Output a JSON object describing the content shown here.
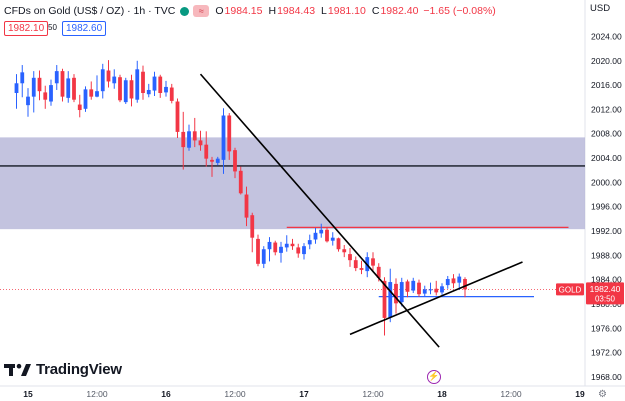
{
  "header": {
    "title": "CFDs on Gold (US$ / OZ) · 1h · TVC",
    "highlight_badge": "≈",
    "open_label": "O",
    "open": "1984.15",
    "high_label": "H",
    "high": "1984.43",
    "low_label": "L",
    "low": "1981.10",
    "close_label": "C",
    "close": "1982.40",
    "change": "−1.65 (−0.08%)"
  },
  "trade": {
    "sell": "1982.10",
    "spread": "50",
    "buy": "1982.60"
  },
  "currency": "USD",
  "branding": {
    "logo_text": "TradingView"
  },
  "colors": {
    "up": "#2962ff",
    "down": "#f23645",
    "zone": "#b2b2d6",
    "price_label": "#f23645"
  },
  "chart_data": {
    "type": "candlestick",
    "symbol_label": "GOLD",
    "last_price_label": "1982.40",
    "countdown_label": "03:50",
    "ylim": [
      1966.5,
      2030.0
    ],
    "y_ticks": [
      "2024.00",
      "2020.00",
      "2016.00",
      "2012.00",
      "2008.00",
      "2004.00",
      "2000.00",
      "1996.00",
      "1992.00",
      "1988.00",
      "1984.00",
      "1980.00",
      "1976.00",
      "1972.00",
      "1968.00"
    ],
    "x_ticks": [
      {
        "t": 0,
        "label": "15"
      },
      {
        "t": 12,
        "label": "12:00"
      },
      {
        "t": 24,
        "label": "16"
      },
      {
        "t": 36,
        "label": "12:00"
      },
      {
        "t": 48,
        "label": "17"
      },
      {
        "t": 60,
        "label": "12:00"
      },
      {
        "t": 72,
        "label": "18"
      },
      {
        "t": 84,
        "label": "12:00"
      },
      {
        "t": 96,
        "label": "19"
      }
    ],
    "zone": {
      "low": 1992.3,
      "high": 2007.4
    },
    "hlines": [
      {
        "y": 2002.7,
        "color": "#131722"
      },
      {
        "y": 1992.6,
        "t0": 45,
        "t1": 94,
        "color": "#f23645"
      },
      {
        "y": 1981.2,
        "t0": 61,
        "t1": 88,
        "color": "#2962ff"
      }
    ],
    "trendlines": [
      {
        "t0": 30,
        "y0": 2017.8,
        "t1": 71.5,
        "y1": 1972.9
      },
      {
        "t0": 56,
        "y0": 1975.0,
        "t1": 86,
        "y1": 1986.9
      }
    ],
    "last_price": 1982.4,
    "candles": [
      [
        -2,
        2014.7,
        2017.8,
        2012.1,
        2016.3
      ],
      [
        -1,
        2016.3,
        2019.3,
        2014.0,
        2018.1
      ],
      [
        0,
        2012.7,
        2015.5,
        2010.8,
        2014.1
      ],
      [
        1,
        2014.1,
        2018.3,
        2011.5,
        2017.2
      ],
      [
        2,
        2017.2,
        2018.4,
        2013.5,
        2015.0
      ],
      [
        3,
        2014.8,
        2015.9,
        2012.1,
        2013.6
      ],
      [
        4,
        2013.3,
        2016.9,
        2012.6,
        2016.0
      ],
      [
        5,
        2016.3,
        2019.3,
        2015.2,
        2018.3
      ],
      [
        6,
        2018.3,
        2018.7,
        2013.3,
        2014.1
      ],
      [
        7,
        2013.9,
        2018.3,
        2013.1,
        2017.1
      ],
      [
        8,
        2017.2,
        2017.8,
        2013.2,
        2013.6
      ],
      [
        9,
        2012.8,
        2014.4,
        2010.7,
        2011.9
      ],
      [
        10,
        2012.1,
        2015.8,
        2011.6,
        2015.3
      ],
      [
        11,
        2015.3,
        2016.6,
        2013.6,
        2014.1
      ],
      [
        12,
        2014.1,
        2017.6,
        2014.0,
        2015.0
      ],
      [
        13,
        2015.0,
        2019.5,
        2013.8,
        2018.6
      ],
      [
        14,
        2018.4,
        2020.1,
        2015.6,
        2016.6
      ],
      [
        15,
        2016.3,
        2018.6,
        2015.4,
        2017.4
      ],
      [
        16,
        2017.3,
        2017.7,
        2013.2,
        2013.5
      ],
      [
        17,
        2013.2,
        2017.2,
        2012.9,
        2016.8
      ],
      [
        18,
        2016.8,
        2017.7,
        2012.5,
        2013.8
      ],
      [
        19,
        2013.6,
        2020.0,
        2013.1,
        2018.6
      ],
      [
        20,
        2018.2,
        2019.2,
        2013.6,
        2014.7
      ],
      [
        21,
        2014.5,
        2016.2,
        2014.0,
        2015.2
      ],
      [
        22,
        2015.1,
        2018.2,
        2014.2,
        2017.4
      ],
      [
        23,
        2017.4,
        2017.7,
        2013.9,
        2014.7
      ],
      [
        24,
        2014.8,
        2016.7,
        2014.1,
        2015.7
      ],
      [
        25,
        2015.6,
        2016.2,
        2013.0,
        2013.4
      ],
      [
        26,
        2013.3,
        2013.8,
        2007.3,
        2008.3
      ],
      [
        27,
        2008.3,
        2011.6,
        2002.1,
        2005.8
      ],
      [
        28,
        2005.7,
        2009.5,
        2005.2,
        2008.4
      ],
      [
        29,
        2008.4,
        2010.6,
        2005.8,
        2006.9
      ],
      [
        30,
        2006.9,
        2008.5,
        2005.2,
        2006.1
      ],
      [
        31,
        2006.2,
        2008.4,
        2002.6,
        2003.9
      ],
      [
        32,
        2003.7,
        2004.2,
        2000.9,
        2003.4
      ],
      [
        33,
        2003.2,
        2004.2,
        2002.8,
        2003.9
      ],
      [
        34,
        2003.7,
        2012.2,
        2001.4,
        2011.0
      ],
      [
        35,
        2011.0,
        2011.4,
        2003.7,
        2005.1
      ],
      [
        36,
        2005.3,
        2005.7,
        2000.7,
        2001.8
      ],
      [
        37,
        2001.9,
        2002.6,
        1998.0,
        1998.2
      ],
      [
        38,
        1998.0,
        1999.3,
        1992.8,
        1994.2
      ],
      [
        39,
        1994.6,
        1995.0,
        1988.5,
        1990.9
      ],
      [
        40,
        1990.7,
        1991.4,
        1986.2,
        1986.6
      ],
      [
        41,
        1986.6,
        1989.5,
        1985.9,
        1989.0
      ],
      [
        42,
        1989.0,
        1991.0,
        1987.0,
        1990.2
      ],
      [
        43,
        1990.1,
        1990.4,
        1988.0,
        1988.5
      ],
      [
        44,
        1988.4,
        1990.2,
        1986.8,
        1989.4
      ],
      [
        45,
        1989.3,
        1991.3,
        1988.6,
        1989.9
      ],
      [
        46,
        1989.9,
        1990.7,
        1988.9,
        1989.5
      ],
      [
        47,
        1989.3,
        1989.9,
        1987.6,
        1988.3
      ],
      [
        48,
        1988.2,
        1990.0,
        1987.3,
        1989.5
      ],
      [
        49,
        1989.8,
        1991.4,
        1989.0,
        1990.5
      ],
      [
        50,
        1990.6,
        1992.5,
        1989.9,
        1991.7
      ],
      [
        51,
        1991.6,
        1993.2,
        1990.9,
        1992.2
      ],
      [
        52,
        1992.2,
        1992.6,
        1990.1,
        1990.3
      ],
      [
        53,
        1990.4,
        1991.8,
        1989.6,
        1990.9
      ],
      [
        54,
        1990.8,
        1990.9,
        1988.6,
        1989.0
      ],
      [
        55,
        1989.0,
        1989.7,
        1987.7,
        1988.5
      ],
      [
        56,
        1988.2,
        1989.2,
        1986.1,
        1987.2
      ],
      [
        57,
        1987.2,
        1987.8,
        1985.4,
        1985.9
      ],
      [
        58,
        1985.9,
        1987.1,
        1984.9,
        1985.6
      ],
      [
        59,
        1985.4,
        1988.5,
        1984.4,
        1987.7
      ],
      [
        60,
        1987.5,
        1988.5,
        1985.2,
        1986.3
      ],
      [
        61,
        1986.1,
        1986.7,
        1983.7,
        1984.3
      ],
      [
        62,
        1983.8,
        1984.4,
        1974.8,
        1977.7
      ],
      [
        63,
        1977.8,
        1985.8,
        1977.0,
        1983.6
      ],
      [
        64,
        1983.3,
        1984.2,
        1978.4,
        1980.1
      ],
      [
        65,
        1980.3,
        1984.3,
        1979.6,
        1983.6
      ],
      [
        66,
        1983.7,
        1984.0,
        1981.1,
        1982.0
      ],
      [
        67,
        1982.2,
        1984.3,
        1981.8,
        1983.8
      ],
      [
        68,
        1983.5,
        1984.0,
        1981.2,
        1981.6
      ],
      [
        69,
        1981.7,
        1983.0,
        1981.2,
        1982.4
      ],
      [
        70,
        1982.4,
        1983.5,
        1981.6,
        1982.4
      ],
      [
        71,
        1982.5,
        1983.8,
        1981.4,
        1981.9
      ],
      [
        72,
        1981.9,
        1983.4,
        1981.5,
        1982.9
      ],
      [
        73,
        1983.1,
        1984.6,
        1982.5,
        1984.1
      ],
      [
        74,
        1984.2,
        1984.9,
        1982.6,
        1983.4
      ],
      [
        75,
        1983.5,
        1985.0,
        1982.3,
        1984.5
      ],
      [
        76,
        1984.1,
        1984.4,
        1981.1,
        1982.4
      ]
    ]
  }
}
